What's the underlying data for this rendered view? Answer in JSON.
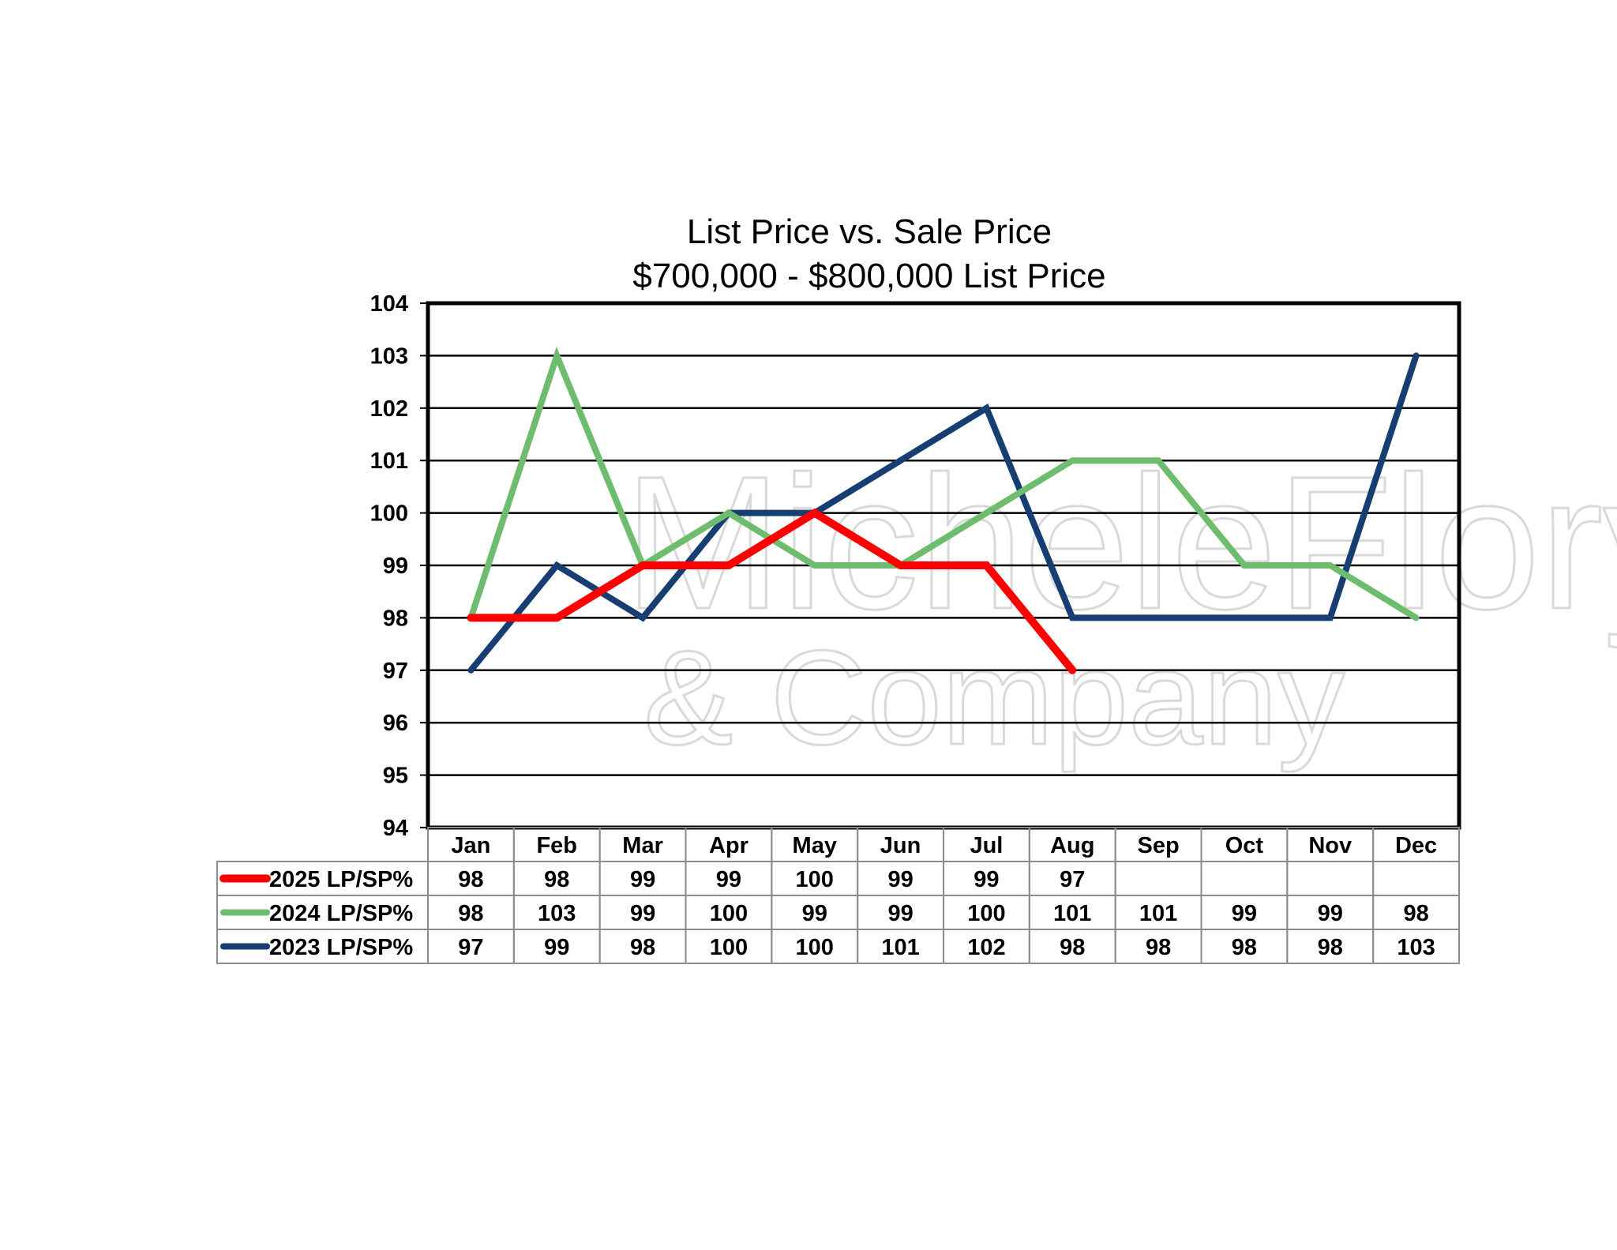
{
  "chart_data": {
    "type": "line",
    "title": "List Price vs. Sale Price",
    "subtitle": "$700,000 - $800,000 List Price",
    "categories": [
      "Jan",
      "Feb",
      "Mar",
      "Apr",
      "May",
      "Jun",
      "Jul",
      "Aug",
      "Sep",
      "Oct",
      "Nov",
      "Dec"
    ],
    "ylim": [
      94,
      104
    ],
    "yticks": [
      94,
      95,
      96,
      97,
      98,
      99,
      100,
      101,
      102,
      103,
      104
    ],
    "grid": true,
    "legend": "data-table-below",
    "series": [
      {
        "name": "2025 LP/SP%",
        "color": "#ff0000",
        "values": [
          98,
          98,
          99,
          99,
          100,
          99,
          99,
          97,
          null,
          null,
          null,
          null
        ]
      },
      {
        "name": "2024 LP/SP%",
        "color": "#6ebd6e",
        "values": [
          98,
          103,
          99,
          100,
          99,
          99,
          100,
          101,
          101,
          99,
          99,
          98
        ]
      },
      {
        "name": "2023 LP/SP%",
        "color": "#163e73",
        "values": [
          97,
          99,
          98,
          100,
          100,
          101,
          102,
          98,
          98,
          98,
          98,
          103
        ]
      }
    ]
  },
  "watermark": {
    "line1": "MicheleFlory",
    "line2": "& Company"
  }
}
